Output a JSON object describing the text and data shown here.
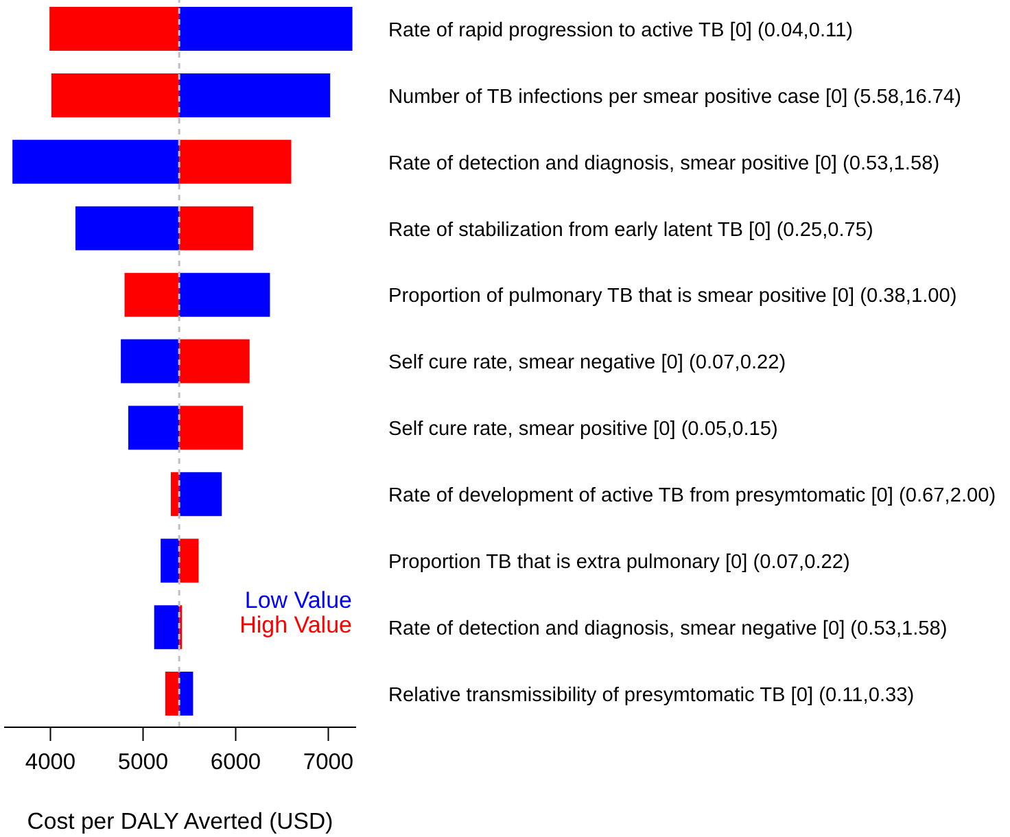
{
  "chart_data": {
    "type": "bar",
    "orientation": "horizontal",
    "xlabel": "Cost per DALY Averted (USD)",
    "categories": [
      "Rate of rapid progression to active TB [0] (0.04,0.11)",
      "Number of TB infections per smear positive case [0] (5.58,16.74)",
      "Rate of detection and diagnosis, smear positive [0] (0.53,1.58)",
      "Rate of stabilization from early latent TB [0] (0.25,0.75)",
      "Proportion of pulmonary TB that is smear positive [0] (0.38,1.00)",
      "Self cure rate, smear negative [0] (0.07,0.22)",
      "Self cure rate, smear positive [0] (0.05,0.15)",
      "Rate of development of active TB from presymtomatic [0] (0.67,2.00)",
      "Proportion TB that is extra pulmonary [0] (0.07,0.22)",
      "Rate of detection and diagnosis, smear negative [0] (0.53,1.58)",
      "Relative transmissibility of presymtomatic TB [0] (0.11,0.33)"
    ],
    "series": [
      {
        "name": "Low Value",
        "color": "#0000ff",
        "base": [
          5390,
          5390,
          5390,
          5390,
          5390,
          5390,
          5390,
          5390,
          5390,
          5390,
          5390
        ],
        "values": [
          1870,
          1630,
          -1800,
          -1120,
          980,
          -630,
          -550,
          460,
          -200,
          -270,
          150
        ]
      },
      {
        "name": "High Value",
        "color": "#ff0000",
        "base": [
          5390,
          5390,
          5390,
          5390,
          5390,
          5390,
          5390,
          5390,
          5390,
          5390,
          5390
        ],
        "values": [
          -1400,
          -1380,
          1210,
          800,
          -590,
          760,
          690,
          -90,
          210,
          30,
          -150
        ]
      }
    ],
    "xlim": [
      3500,
      7300
    ],
    "xticks": [
      4000,
      5000,
      6000,
      7000
    ],
    "ref_lines": [
      {
        "axis": "x",
        "value": 5390,
        "color": "#bebebe",
        "line_style": "dashed"
      }
    ]
  }
}
